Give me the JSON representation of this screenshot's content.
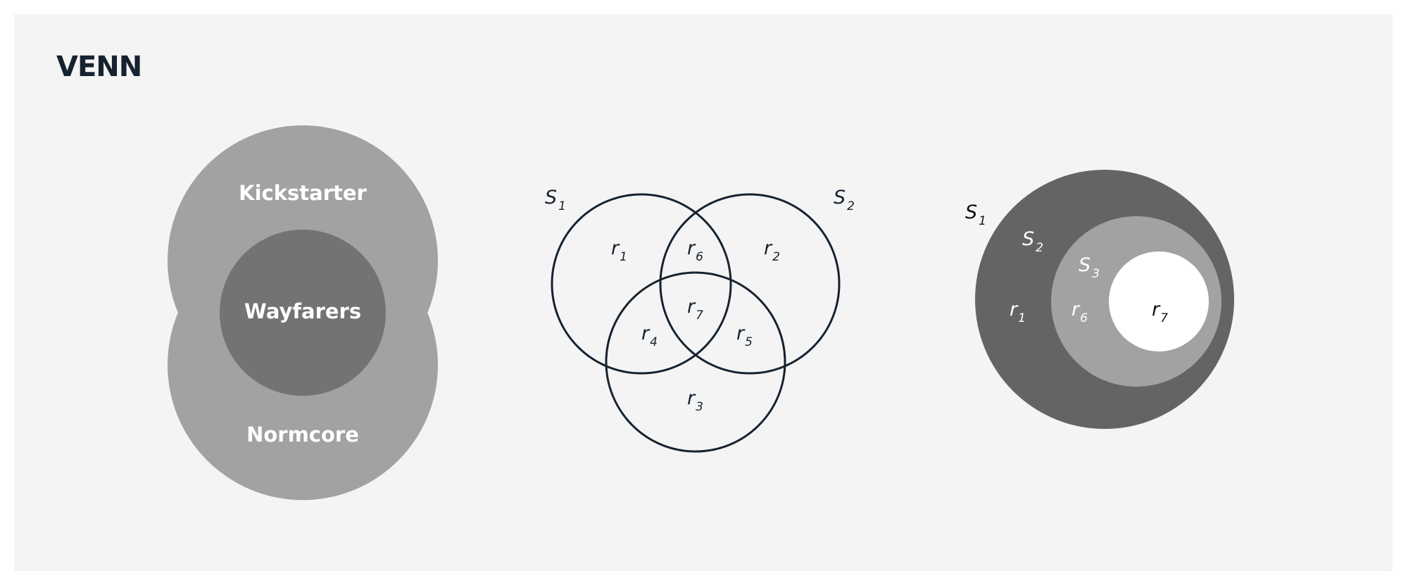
{
  "title": "VENN",
  "colors": {
    "background": "#f4f4f4",
    "ink": "#16222f",
    "light_gray": "#a3a1a2",
    "dark_gray": "#747273",
    "darkest_gray": "#656462",
    "mid_gray": "#a2a2a2",
    "white": "#ffffff"
  },
  "diagrams": {
    "two_set": {
      "top_label": "Kickstarter",
      "overlap_label": "Wayfarers",
      "bottom_label": "Normcore"
    },
    "three_set": {
      "set_labels": [
        {
          "base": "S",
          "sub": "1"
        },
        {
          "base": "S",
          "sub": "2"
        }
      ],
      "region_labels": [
        {
          "base": "r",
          "sub": "1"
        },
        {
          "base": "r",
          "sub": "6"
        },
        {
          "base": "r",
          "sub": "2"
        },
        {
          "base": "r",
          "sub": "7"
        },
        {
          "base": "r",
          "sub": "4"
        },
        {
          "base": "r",
          "sub": "5"
        },
        {
          "base": "r",
          "sub": "3"
        }
      ]
    },
    "nested": {
      "set_labels": [
        {
          "base": "S",
          "sub": "1"
        },
        {
          "base": "S",
          "sub": "2"
        },
        {
          "base": "S",
          "sub": "3"
        }
      ],
      "region_labels": [
        {
          "base": "r",
          "sub": "1"
        },
        {
          "base": "r",
          "sub": "6"
        },
        {
          "base": "r",
          "sub": "7"
        }
      ]
    }
  }
}
